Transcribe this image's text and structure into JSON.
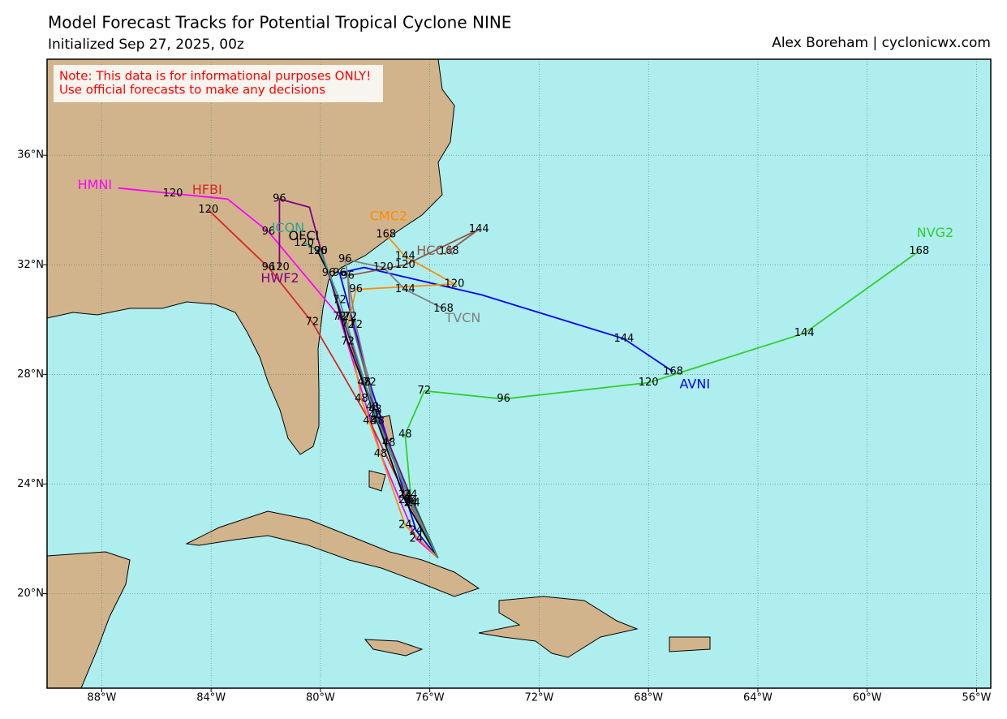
{
  "header": {
    "title": "Model Forecast Tracks  for Potential Tropical Cyclone NINE",
    "subtitle": "Initialized Sep 27, 2025, 00z",
    "credit": "Alex Boreham | cyclonicwx.com"
  },
  "note": [
    "Note: This data is for informational purposes ONLY!",
    "Use official forecasts to make any decisions"
  ],
  "map": {
    "xlim": [
      -90,
      -55.48
    ],
    "ylim": [
      16.55,
      39.5
    ],
    "xticks": [
      {
        "value": -88,
        "label": "88°W"
      },
      {
        "value": -84,
        "label": "84°W"
      },
      {
        "value": -80,
        "label": "80°W"
      },
      {
        "value": -76,
        "label": "76°W"
      },
      {
        "value": -72,
        "label": "72°W"
      },
      {
        "value": -68,
        "label": "68°W"
      },
      {
        "value": -64,
        "label": "64°W"
      },
      {
        "value": -60,
        "label": "60°W"
      },
      {
        "value": -56,
        "label": "56°W"
      }
    ],
    "yticks": [
      {
        "value": 20,
        "label": "20°N"
      },
      {
        "value": 24,
        "label": "24°N"
      },
      {
        "value": 28,
        "label": "28°N"
      },
      {
        "value": 32,
        "label": "32°N"
      },
      {
        "value": 36,
        "label": "36°N"
      }
    ],
    "grid": true
  },
  "tracks": [
    {
      "name": "AVNI",
      "color": "#0000ff",
      "points": [
        {
          "lon": -75.7,
          "lat": 21.3
        },
        {
          "lon": -76.5,
          "lat": 22.3,
          "hour": 24
        },
        {
          "lon": -77.5,
          "lat": 25.5,
          "hour": 48
        },
        {
          "lon": -78.2,
          "lat": 27.7,
          "hour": 72
        },
        {
          "lon": -79.3,
          "lat": 31.7,
          "hour": 96
        },
        {
          "lon": -78.4,
          "lat": 31.9
        },
        {
          "lon": -74.1,
          "lat": 30.9
        },
        {
          "lon": -68.9,
          "lat": 29.3,
          "hour": 144
        },
        {
          "lon": -67.1,
          "lat": 28.1,
          "hour": 168
        }
      ]
    },
    {
      "name": "NVG2",
      "color": "#32cd32",
      "points": [
        {
          "lon": -75.7,
          "lat": 21.3
        },
        {
          "lon": -76.7,
          "lat": 23.6,
          "hour": 24
        },
        {
          "lon": -76.9,
          "lat": 25.8,
          "hour": 48
        },
        {
          "lon": -76.2,
          "lat": 27.4,
          "hour": 72
        },
        {
          "lon": -73.3,
          "lat": 27.1,
          "hour": 96
        },
        {
          "lon": -68.0,
          "lat": 27.7,
          "hour": 120
        },
        {
          "lon": -62.3,
          "lat": 29.5,
          "hour": 144
        },
        {
          "lon": -58.1,
          "lat": 32.5,
          "hour": 168
        }
      ]
    },
    {
      "name": "HMNI",
      "color": "#ff00ff",
      "points": [
        {
          "lon": -75.7,
          "lat": 21.3
        },
        {
          "lon": -76.5,
          "lat": 22.0,
          "hour": 24
        },
        {
          "lon": -77.8,
          "lat": 25.1,
          "hour": 48
        },
        {
          "lon": -79.3,
          "lat": 30.1,
          "hour": 72
        },
        {
          "lon": -81.9,
          "lat": 33.2,
          "hour": 96
        },
        {
          "lon": -83.4,
          "lat": 34.4
        },
        {
          "lon": -85.4,
          "lat": 34.6,
          "hour": 120
        },
        {
          "lon": -87.4,
          "lat": 34.8
        }
      ]
    },
    {
      "name": "HFBI",
      "color": "#d62728",
      "points": [
        {
          "lon": -75.7,
          "lat": 21.3
        },
        {
          "lon": -76.9,
          "lat": 23.6,
          "hour": 24
        },
        {
          "lon": -78.2,
          "lat": 26.3,
          "hour": 48
        },
        {
          "lon": -79.3,
          "lat": 28.2
        },
        {
          "lon": -80.3,
          "lat": 29.9,
          "hour": 72
        },
        {
          "lon": -81.9,
          "lat": 31.9,
          "hour": 96
        },
        {
          "lon": -84.1,
          "lat": 34.0,
          "hour": 120
        }
      ]
    },
    {
      "name": "CMC2",
      "color": "#ff8c00",
      "points": [
        {
          "lon": -75.7,
          "lat": 21.3
        },
        {
          "lon": -76.9,
          "lat": 22.5,
          "hour": 24
        },
        {
          "lon": -78.5,
          "lat": 27.1,
          "hour": 48
        },
        {
          "lon": -79.0,
          "lat": 29.8,
          "hour": 72
        },
        {
          "lon": -78.7,
          "lat": 31.1,
          "hour": 96
        },
        {
          "lon": -75.1,
          "lat": 31.3,
          "hour": 120
        },
        {
          "lon": -76.9,
          "lat": 32.3,
          "hour": 144
        },
        {
          "lon": -77.6,
          "lat": 33.1,
          "hour": 168
        }
      ]
    },
    {
      "name": "HCCA",
      "color": "#8b5a4a",
      "points": [
        {
          "lon": -75.7,
          "lat": 21.3
        },
        {
          "lon": -76.7,
          "lat": 23.3,
          "hour": 24
        },
        {
          "lon": -77.9,
          "lat": 26.3,
          "hour": 48
        },
        {
          "lon": -78.9,
          "lat": 30.1,
          "hour": 72
        },
        {
          "lon": -79.0,
          "lat": 31.6,
          "hour": 96
        },
        {
          "lon": -76.9,
          "lat": 32.0,
          "hour": 120
        },
        {
          "lon": -74.2,
          "lat": 33.3,
          "hour": 144
        },
        {
          "lon": -75.3,
          "lat": 32.5,
          "hour": 168
        }
      ]
    },
    {
      "name": "TVCN",
      "color": "#808080",
      "points": [
        {
          "lon": -75.7,
          "lat": 21.3
        },
        {
          "lon": -76.7,
          "lat": 23.3,
          "hour": 24
        },
        {
          "lon": -78.0,
          "lat": 26.7,
          "hour": 48
        },
        {
          "lon": -78.7,
          "lat": 29.8,
          "hour": 72
        },
        {
          "lon": -79.1,
          "lat": 32.2,
          "hour": 96
        },
        {
          "lon": -77.7,
          "lat": 31.9,
          "hour": 120
        },
        {
          "lon": -76.9,
          "lat": 31.1,
          "hour": 144
        },
        {
          "lon": -75.5,
          "lat": 30.4,
          "hour": 168
        }
      ]
    },
    {
      "name": "OFCI",
      "color": "#000000",
      "points": [
        {
          "lon": -75.7,
          "lat": 21.3
        },
        {
          "lon": -76.9,
          "lat": 23.4,
          "hour": 24
        },
        {
          "lon": -78.0,
          "lat": 26.5,
          "hour": 48
        },
        {
          "lon": -79.0,
          "lat": 29.2,
          "hour": 72
        },
        {
          "lon": -79.7,
          "lat": 31.7,
          "hour": 96
        },
        {
          "lon": -80.1,
          "lat": 32.5,
          "hour": 120
        }
      ]
    },
    {
      "name": "HWF2",
      "color": "#800080",
      "points": [
        {
          "lon": -75.7,
          "lat": 21.3
        },
        {
          "lon": -76.6,
          "lat": 23.3,
          "hour": 24
        },
        {
          "lon": -78.4,
          "lat": 27.7,
          "hour": 48
        },
        {
          "lon": -79.2,
          "lat": 30.1,
          "hour": 72
        },
        {
          "lon": -80.0,
          "lat": 32.6
        },
        {
          "lon": -80.4,
          "lat": 34.1
        },
        {
          "lon": -81.5,
          "lat": 34.4,
          "hour": 96
        },
        {
          "lon": -81.5,
          "lat": 31.9,
          "hour": 120
        }
      ]
    },
    {
      "name": "ICON",
      "color": "#2ca08f",
      "points": [
        {
          "lon": -75.7,
          "lat": 21.3
        },
        {
          "lon": -76.7,
          "lat": 23.4,
          "hour": 24
        },
        {
          "lon": -78.1,
          "lat": 26.8,
          "hour": 48
        },
        {
          "lon": -79.3,
          "lat": 30.7,
          "hour": 72
        },
        {
          "lon": -80.0,
          "lat": 32.5,
          "hour": 96
        },
        {
          "lon": -80.6,
          "lat": 32.8,
          "hour": 120
        }
      ]
    }
  ]
}
